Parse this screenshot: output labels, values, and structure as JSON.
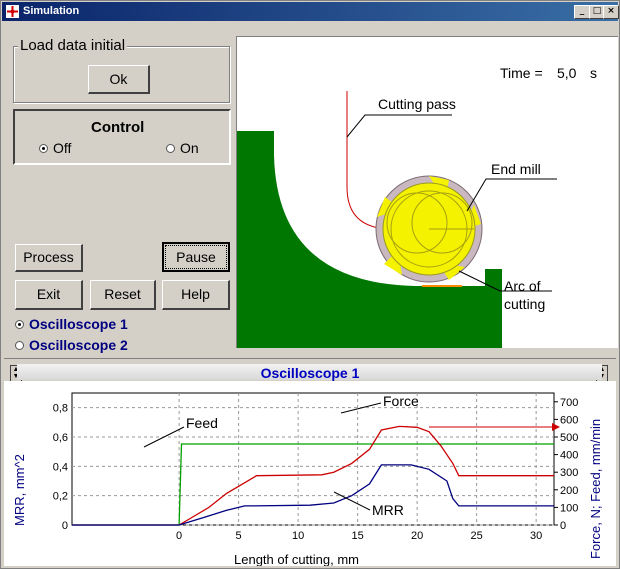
{
  "window": {
    "title": "Simulation",
    "min_btn": "_",
    "max_btn": "□",
    "close_btn": "×"
  },
  "load_group": {
    "label": "Load data initial",
    "ok_button": "Ok"
  },
  "control_group": {
    "label": "Control",
    "off_label": "Off",
    "on_label": "On",
    "selected": "Off"
  },
  "buttons": {
    "process": "Process",
    "pause": "Pause",
    "exit": "Exit",
    "reset": "Reset",
    "help": "Help"
  },
  "oscilloscopes": {
    "osc1": "Oscilloscope 1",
    "osc2": "Oscilloscope 2",
    "selected": "Oscilloscope 1"
  },
  "scene": {
    "time_label": "Time =",
    "time_value": "5,0",
    "time_unit": "s",
    "labels": {
      "cutting_pass": "Cutting pass",
      "end_mill": "End mill",
      "arc_line1": "Arc of",
      "arc_line2": "cutting"
    },
    "colors": {
      "workpiece": "#007700",
      "tool": "#f5f200",
      "flutes": "#c9b8c0",
      "path": "#cc0000"
    }
  },
  "chart_data": {
    "type": "line",
    "title": "Oscilloscope 1",
    "xlabel": "Length of cutting, mm",
    "ylabel_left": "MRR, mm^2",
    "ylabel_right": "Force, N;  Feed, mm/min",
    "xlim": [
      -9,
      31.5
    ],
    "ylim_left": [
      0,
      0.9
    ],
    "ylim_right": [
      0,
      750
    ],
    "x_ticks": [
      "0",
      "5",
      "10",
      "15",
      "20",
      "25",
      "30"
    ],
    "y_ticks_left": [
      "0",
      "0,2",
      "0,4",
      "0,6",
      "0,8"
    ],
    "y_ticks_right": [
      "0",
      "100",
      "200",
      "300",
      "400",
      "500",
      "600",
      "700"
    ],
    "grid": true,
    "series": [
      {
        "name": "Feed",
        "axis": "right",
        "color": "#00a000",
        "points": [
          [
            -9,
            0
          ],
          [
            0,
            0
          ],
          [
            0.2,
            460
          ],
          [
            31.5,
            460
          ]
        ]
      },
      {
        "name": "Force",
        "axis": "right",
        "color": "#cc0000",
        "points": [
          [
            -9,
            0
          ],
          [
            0,
            0
          ],
          [
            1,
            40
          ],
          [
            2.5,
            100
          ],
          [
            4,
            180
          ],
          [
            5.5,
            240
          ],
          [
            6.5,
            280
          ],
          [
            12,
            285
          ],
          [
            13,
            300
          ],
          [
            14.5,
            350
          ],
          [
            16,
            430
          ],
          [
            17,
            540
          ],
          [
            18.5,
            560
          ],
          [
            20,
            555
          ],
          [
            21,
            530
          ],
          [
            22,
            450
          ],
          [
            23,
            350
          ],
          [
            23.5,
            280
          ],
          [
            31.5,
            280
          ]
        ]
      },
      {
        "name": "MRR",
        "axis": "left",
        "color": "#000080",
        "points": [
          [
            -9,
            0
          ],
          [
            0,
            0
          ],
          [
            2,
            0.05
          ],
          [
            4,
            0.1
          ],
          [
            5.5,
            0.13
          ],
          [
            6,
            0.13
          ],
          [
            11,
            0.135
          ],
          [
            13,
            0.15
          ],
          [
            14.5,
            0.2
          ],
          [
            16,
            0.28
          ],
          [
            17,
            0.41
          ],
          [
            19.5,
            0.41
          ],
          [
            21,
            0.38
          ],
          [
            22.5,
            0.3
          ],
          [
            23,
            0.18
          ],
          [
            23.5,
            0.13
          ],
          [
            31.5,
            0.13
          ]
        ]
      }
    ],
    "annotations": [
      "Feed",
      "Force",
      "MRR"
    ]
  }
}
